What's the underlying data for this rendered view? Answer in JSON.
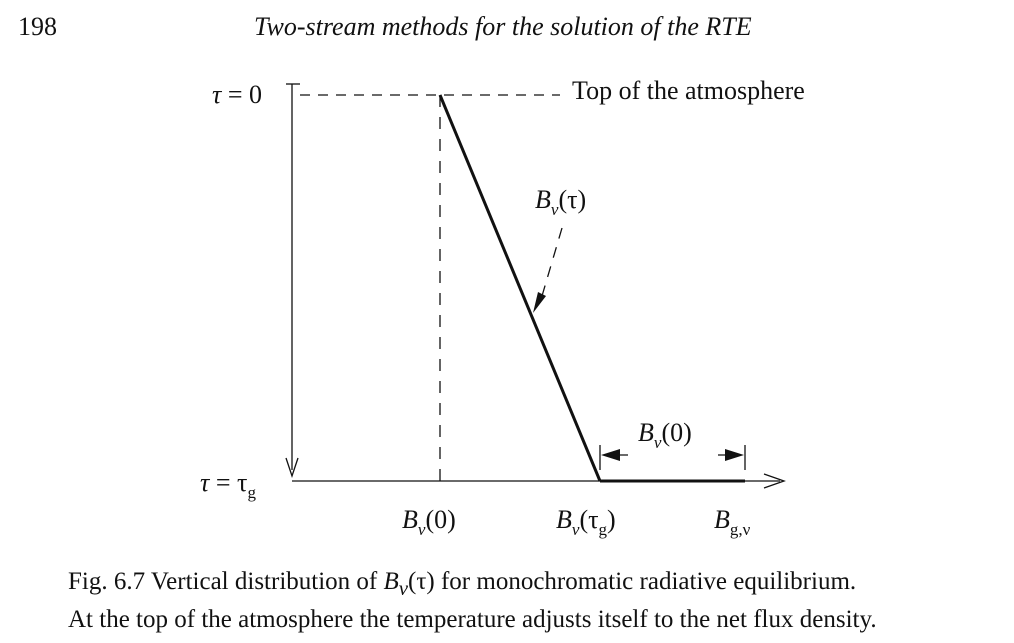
{
  "header": {
    "page_number": "198",
    "running_title": "Two-stream methods for the solution of the RTE"
  },
  "figure": {
    "label_top": "Top of the atmosphere",
    "tau_top": {
      "sym": "τ",
      "rest": " = 0"
    },
    "tau_ground": {
      "sym": "τ",
      "rest": " = τ",
      "sub": "g"
    },
    "curve_label": {
      "main": "B",
      "sub": "ν",
      "arg": "(τ)"
    },
    "flux_label": {
      "main": "B",
      "sub": "ν",
      "arg": "(0)"
    },
    "tick_1": {
      "main": "B",
      "sub": "ν",
      "arg": "(0)"
    },
    "tick_2": {
      "main": "B",
      "sub": "ν",
      "arg_open": "(τ",
      "arg_sub": "g",
      "arg_close": ")"
    },
    "tick_3": {
      "main": "B",
      "sub": "g,ν"
    }
  },
  "caption": {
    "prefix": "Fig. 6.7 Vertical distribution of ",
    "math": "B",
    "math_sub": "ν",
    "math_arg": "(τ)",
    "suffix": " for monochromatic radiative equilibrium.",
    "line2": "At the top of the atmosphere the temperature adjusts itself to the net flux density."
  }
}
